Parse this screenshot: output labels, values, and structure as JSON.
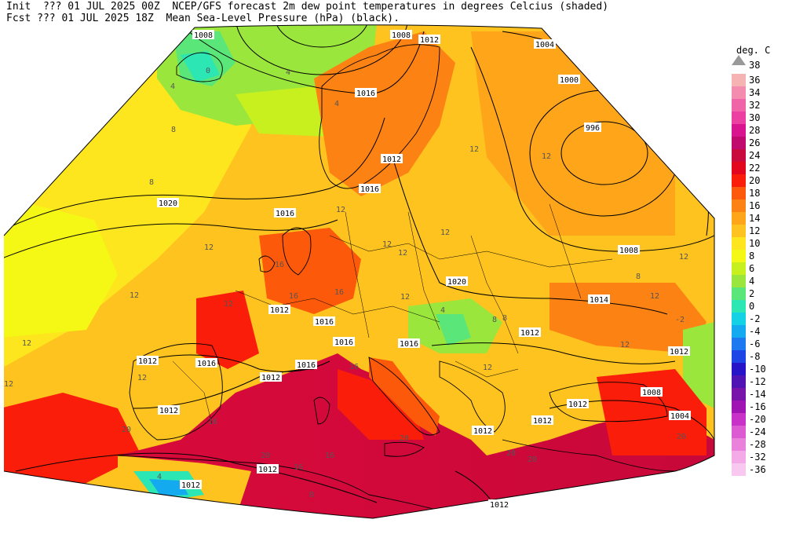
{
  "header": {
    "line1_left": "Init  ??? 01 JUL 2025 00Z",
    "line1_right": "NCEP/GFS forecast 2m dew point temperatures in degrees Celcius (shaded)",
    "line2_left": "Fcst ??? 01 JUL 2025 18Z",
    "line2_right": "Mean Sea-Level Pressure (hPa) (black)."
  },
  "legend": {
    "title": "deg. C",
    "top_value": "38",
    "entries": [
      {
        "label": "36",
        "color": "#f6b3b3"
      },
      {
        "label": "34",
        "color": "#f48cb0"
      },
      {
        "label": "32",
        "color": "#f065a8"
      },
      {
        "label": "30",
        "color": "#ec3fa2"
      },
      {
        "label": "28",
        "color": "#d8148f"
      },
      {
        "label": "26",
        "color": "#c00a6e"
      },
      {
        "label": "24",
        "color": "#c80a3c"
      },
      {
        "label": "22",
        "color": "#e2061e"
      },
      {
        "label": "20",
        "color": "#fa1e0a"
      },
      {
        "label": "18",
        "color": "#fc5a0a"
      },
      {
        "label": "16",
        "color": "#fd8214"
      },
      {
        "label": "14",
        "color": "#fea51a"
      },
      {
        "label": "12",
        "color": "#fec31e"
      },
      {
        "label": "10",
        "color": "#fde61e"
      },
      {
        "label": "8",
        "color": "#f4f814"
      },
      {
        "label": "6",
        "color": "#c8f01e"
      },
      {
        "label": "4",
        "color": "#9ae63c"
      },
      {
        "label": "2",
        "color": "#5ae678"
      },
      {
        "label": "0",
        "color": "#2ce6b4"
      },
      {
        "label": "-2",
        "color": "#14d2e6"
      },
      {
        "label": "-4",
        "color": "#14aaf0"
      },
      {
        "label": "-6",
        "color": "#1e78f0"
      },
      {
        "label": "-8",
        "color": "#1e46e6"
      },
      {
        "label": "-10",
        "color": "#2814c8"
      },
      {
        "label": "-12",
        "color": "#5014b4"
      },
      {
        "label": "-14",
        "color": "#7814aa"
      },
      {
        "label": "-16",
        "color": "#a014b4"
      },
      {
        "label": "-20",
        "color": "#c832c8"
      },
      {
        "label": "-24",
        "color": "#dc5ad2"
      },
      {
        "label": "-28",
        "color": "#ea82dc"
      },
      {
        "label": "-32",
        "color": "#f4aae6"
      },
      {
        "label": "-36",
        "color": "#f9c8f0"
      }
    ]
  },
  "isobar_labels": [
    "1008",
    "1008",
    "1012",
    "1004",
    "1000",
    "996",
    "1016",
    "1012",
    "1016",
    "1016",
    "1020",
    "1008",
    "1020",
    "1014",
    "1012",
    "1016",
    "1012",
    "1016",
    "1020",
    "1016",
    "1016",
    "1016",
    "1012",
    "1012",
    "1012",
    "1012",
    "1012",
    "1012",
    "1012",
    "1012",
    "1008",
    "1004",
    "1012",
    "1012"
  ],
  "dewpoint_labels": [
    "0",
    "4",
    "4",
    "8",
    "8",
    "4",
    "12",
    "12",
    "12",
    "12",
    "12",
    "12",
    "12",
    "12",
    "12",
    "16",
    "16",
    "16",
    "16",
    "12",
    "12",
    "12",
    "12",
    "12",
    "12",
    "12",
    "12",
    "8",
    "8",
    "8",
    "4",
    "16",
    "20",
    "20",
    "20",
    "20",
    "20",
    "16",
    "20",
    "16",
    "8",
    "4",
    "-2"
  ]
}
